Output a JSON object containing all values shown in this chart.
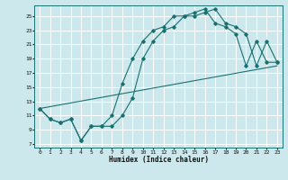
{
  "xlabel": "Humidex (Indice chaleur)",
  "bg_color": "#cce8ec",
  "line_color": "#1a7070",
  "grid_color": "#ffffff",
  "xticks": [
    0,
    1,
    2,
    3,
    4,
    5,
    6,
    7,
    8,
    9,
    10,
    11,
    12,
    13,
    14,
    15,
    16,
    17,
    18,
    19,
    20,
    21,
    22,
    23
  ],
  "yticks": [
    7,
    9,
    11,
    13,
    15,
    17,
    19,
    21,
    23,
    25
  ],
  "line1_x": [
    0,
    1,
    2,
    3,
    4,
    5,
    6,
    7,
    8,
    9,
    10,
    11,
    12,
    13,
    14,
    15,
    16,
    17,
    18,
    19,
    20,
    21,
    22,
    23
  ],
  "line1_y": [
    12,
    10.5,
    10,
    10.5,
    7.5,
    9.5,
    9.5,
    9.5,
    11,
    13.5,
    19,
    21.5,
    23,
    23.5,
    25,
    25,
    25.5,
    26,
    24,
    23.5,
    22.5,
    18,
    21.5,
    18.5
  ],
  "line2_x": [
    0,
    1,
    2,
    3,
    4,
    5,
    6,
    7,
    8,
    9,
    10,
    11,
    12,
    13,
    14,
    15,
    16,
    17,
    18,
    19,
    20,
    21,
    22,
    23
  ],
  "line2_y": [
    12,
    10.5,
    10,
    10.5,
    7.5,
    9.5,
    9.5,
    11,
    15.5,
    19,
    21.5,
    23,
    23.5,
    25,
    25,
    25.5,
    26,
    24,
    23.5,
    22.5,
    18,
    21.5,
    18.5,
    18.5
  ],
  "line3_x": [
    0,
    23
  ],
  "line3_y": [
    12,
    18
  ]
}
